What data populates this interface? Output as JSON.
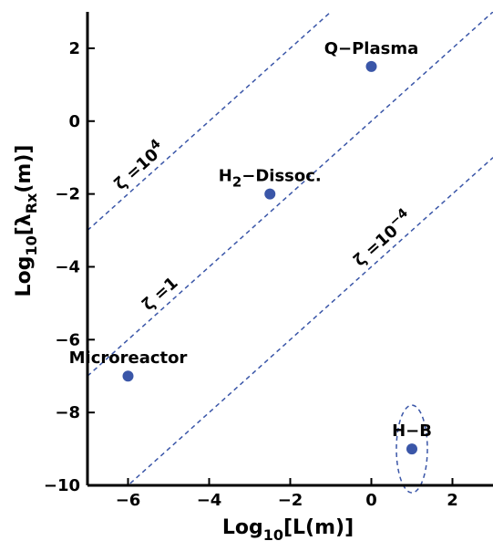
{
  "chart_data": {
    "type": "scatter",
    "xlabel": {
      "pre": "Log",
      "sub": "10",
      "post": "[L(m)]"
    },
    "ylabel": {
      "pre": "Log",
      "sub": "10",
      "mid": "[λ",
      "sub2": "Rx",
      "post": "(m)]"
    },
    "xlim": [
      -7,
      3
    ],
    "ylim": [
      -10,
      3
    ],
    "xticks": [
      -6,
      -4,
      -2,
      0,
      2
    ],
    "yticks": [
      -10,
      -8,
      -6,
      -4,
      -2,
      0,
      2
    ],
    "xtick_labels": [
      "−6",
      "−4",
      "−2",
      "0",
      "2"
    ],
    "ytick_labels": [
      "−10",
      "−8",
      "−6",
      "−4",
      "−2",
      "0",
      "2"
    ],
    "grid": false,
    "point_color": "#3a56a8",
    "line_color": "#3a56a8",
    "points": [
      {
        "label": "Q−Plasma",
        "x": 0,
        "y": 1.5
      },
      {
        "label_pre": "H",
        "label_sub": "2",
        "label_post": "−Dissoc.",
        "x": -2.5,
        "y": -2
      },
      {
        "label": "Microreactor",
        "x": -6,
        "y": -7
      },
      {
        "label": "H−B",
        "x": 1,
        "y": -9,
        "circled": true
      }
    ],
    "lines": [
      {
        "offset": 4,
        "label_pre": "ζ =10",
        "label_sup": "4"
      },
      {
        "offset": 0,
        "label_pre": "ζ =1",
        "label_sup": ""
      },
      {
        "offset": -4,
        "label_pre": "ζ =10",
        "label_sup": "−4"
      }
    ]
  }
}
